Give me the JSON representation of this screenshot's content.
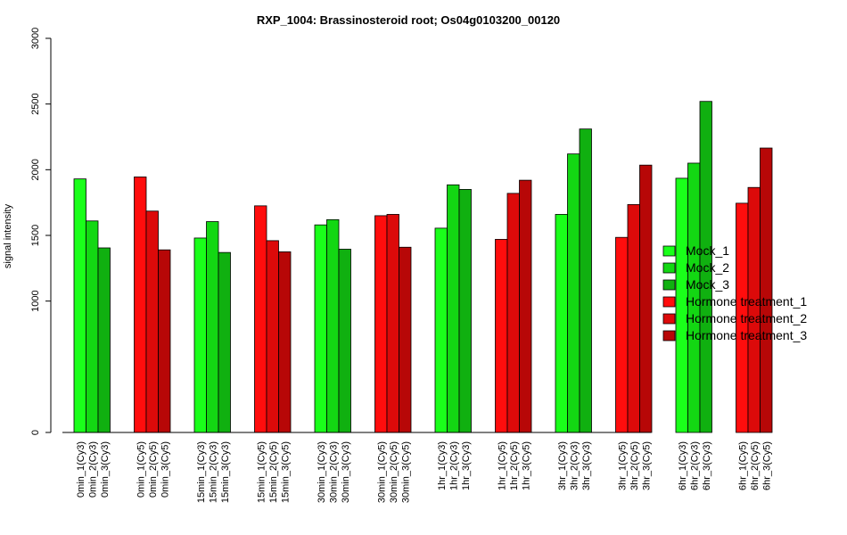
{
  "chart_data": {
    "type": "bar",
    "title": "RXP_1004: Brassinosteroid root; Os04g0103200_00120",
    "xlabel": "",
    "ylabel": "signal intensity",
    "ylim": [
      0,
      3000
    ],
    "y_ticks": [
      0,
      1000,
      1500,
      2000,
      2500,
      3000
    ],
    "grid": false,
    "legend_position": "right",
    "categories": [
      "0min_1(Cy3)",
      "0min_2(Cy3)",
      "0min_3(Cy3)",
      "0min_1(Cy5)",
      "0min_2(Cy5)",
      "0min_3(Cy5)",
      "15min_1(Cy3)",
      "15min_2(Cy3)",
      "15min_3(Cy3)",
      "15min_1(Cy5)",
      "15min_2(Cy5)",
      "15min_3(Cy5)",
      "30min_1(Cy3)",
      "30min_2(Cy3)",
      "30min_3(Cy3)",
      "30min_1(Cy5)",
      "30min_2(Cy5)",
      "30min_3(Cy5)",
      "1hr_1(Cy3)",
      "1hr_2(Cy3)",
      "1hr_3(Cy3)",
      "1hr_1(Cy5)",
      "1hr_2(Cy5)",
      "1hr_3(Cy5)",
      "3hr_1(Cy3)",
      "3hr_2(Cy3)",
      "3hr_3(Cy3)",
      "3hr_1(Cy5)",
      "3hr_2(Cy5)",
      "3hr_3(Cy5)",
      "6hr_1(Cy3)",
      "6hr_2(Cy3)",
      "6hr_3(Cy3)",
      "6hr_1(Cy5)",
      "6hr_2(Cy5)",
      "6hr_3(Cy5)"
    ],
    "values": [
      1930,
      1610,
      1405,
      1945,
      1685,
      1390,
      1480,
      1605,
      1370,
      1725,
      1460,
      1375,
      1580,
      1620,
      1395,
      1650,
      1660,
      1410,
      1555,
      1885,
      1850,
      1470,
      1820,
      1920,
      1660,
      2120,
      2310,
      1485,
      1735,
      2035,
      1935,
      2050,
      2520,
      1745,
      1865,
      2165
    ],
    "series": [
      {
        "name": "Mock_1",
        "color": "#1aff1a"
      },
      {
        "name": "Mock_2",
        "color": "#13d713"
      },
      {
        "name": "Mock_3",
        "color": "#10b010"
      },
      {
        "name": "Hormone treatment_1",
        "color": "#ff0d0d"
      },
      {
        "name": "Hormone treatment_2",
        "color": "#dc0a0a"
      },
      {
        "name": "Hormone treatment_3",
        "color": "#b70707"
      }
    ],
    "bar_series_index": [
      0,
      1,
      2,
      3,
      4,
      5,
      0,
      1,
      2,
      3,
      4,
      5,
      0,
      1,
      2,
      3,
      4,
      5,
      0,
      1,
      2,
      3,
      4,
      5,
      0,
      1,
      2,
      3,
      4,
      5,
      0,
      1,
      2,
      3,
      4,
      5
    ]
  }
}
